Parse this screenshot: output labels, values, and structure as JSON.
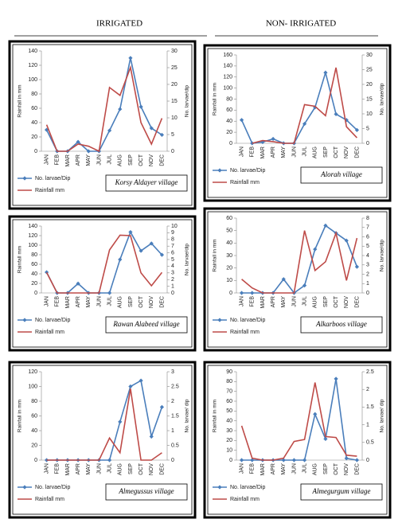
{
  "headers": [
    "IRRIGATED",
    "NON- IRRIGATED"
  ],
  "chart_data": [
    {
      "type": "line",
      "label": "Korsy Aldayer village",
      "y_label": "Rainfall in mm",
      "y2_label": "No. larvae/dip",
      "categories": [
        "JAN",
        "FEB",
        "MAR",
        "APR",
        "MAY",
        "JUN",
        "JUL",
        "AUG",
        "SEP",
        "OCT",
        "NOV",
        "DEC"
      ],
      "ylim": [
        0,
        140
      ],
      "yticks": [
        0,
        20,
        40,
        60,
        80,
        100,
        120,
        140
      ],
      "y2lim": [
        0,
        30
      ],
      "y2ticks": [
        0,
        5,
        10,
        15,
        20,
        25,
        30
      ],
      "series": [
        {
          "name": "No. larvae/Dip",
          "color": "#4a7ebb",
          "axis": "y2",
          "marker": "diamond",
          "values": [
            6.4,
            0,
            0,
            2.8,
            0,
            0,
            6.2,
            12.6,
            27.9,
            13.3,
            6.9,
            4.9
          ]
        },
        {
          "name": "Rainfall mm",
          "color": "#be4b48",
          "values": [
            37,
            0,
            0,
            10,
            7,
            0,
            89,
            78,
            117,
            40,
            10,
            46
          ]
        }
      ]
    },
    {
      "type": "line",
      "label": "Alorah village",
      "y_label": "Rainfall in mm",
      "y2_label": "No. larvae/dip",
      "categories": [
        "JAN",
        "FEB",
        "MAR",
        "APR",
        "MAY",
        "JUN",
        "JUL",
        "AUG",
        "SEP",
        "OCT",
        "NOV",
        "DEC"
      ],
      "ylim": [
        0,
        160
      ],
      "yticks": [
        0,
        20,
        40,
        60,
        80,
        100,
        120,
        140,
        160
      ],
      "y2lim": [
        0,
        30
      ],
      "y2ticks": [
        0,
        5,
        10,
        15,
        20,
        25,
        30
      ],
      "series": [
        {
          "name": "No. larvae/Dip",
          "color": "#4a7ebb",
          "axis": "y2",
          "marker": "diamond",
          "values": [
            7.9,
            0,
            0.4,
            1.5,
            0,
            0,
            6.6,
            12.2,
            24,
            9.9,
            7.9,
            4.5
          ]
        },
        {
          "name": "Rainfall mm",
          "color": "#be4b48",
          "values": [
            null,
            0,
            5,
            3,
            0,
            0,
            70,
            67,
            50,
            137,
            30,
            10
          ]
        }
      ]
    },
    {
      "type": "line",
      "label": "Rawan Alabeed village",
      "y_label": "Rainfall mm",
      "y2_label": "No. larvae/dip",
      "categories": [
        "JAN",
        "FEB",
        "MAR",
        "APR",
        "MAY",
        "JUN",
        "JUL",
        "AUG",
        "SEP",
        "OCT",
        "NOV",
        "DEC"
      ],
      "ylim": [
        0,
        140
      ],
      "yticks": [
        0,
        20,
        40,
        60,
        80,
        100,
        120,
        140
      ],
      "y2lim": [
        0,
        10
      ],
      "y2ticks": [
        0,
        1,
        2,
        3,
        4,
        5,
        6,
        7,
        8,
        9,
        10
      ],
      "series": [
        {
          "name": "No. larvae/Dip",
          "color": "#4a7ebb",
          "axis": "y2",
          "marker": "diamond",
          "values": [
            3.1,
            0,
            0,
            1.4,
            0,
            0,
            0,
            5,
            9.1,
            6.3,
            7.4,
            5.7
          ]
        },
        {
          "name": "Rainfall mm",
          "color": "#be4b48",
          "values": [
            43,
            0,
            0,
            0,
            0,
            0,
            90,
            121,
            120,
            42,
            15,
            43
          ]
        }
      ]
    },
    {
      "type": "line",
      "label": "Alkarboos village",
      "y_label": "Rainfall in mm",
      "y2_label": "No. larvae/dip",
      "categories": [
        "JAN",
        "FEB",
        "MAR",
        "APR",
        "MAY",
        "JUN",
        "JUL",
        "AUG",
        "SEP",
        "OCT",
        "NOV",
        "DEC"
      ],
      "ylim": [
        0,
        60
      ],
      "yticks": [
        0,
        10,
        20,
        30,
        40,
        50,
        60
      ],
      "y2lim": [
        0,
        8
      ],
      "y2ticks": [
        0,
        1,
        2,
        3,
        4,
        5,
        6,
        7,
        8
      ],
      "series": [
        {
          "name": "No. larvae/Dip",
          "color": "#4a7ebb",
          "axis": "y2",
          "marker": "diamond",
          "values": [
            0,
            0,
            0,
            0,
            1.47,
            0,
            0.8,
            4.67,
            7.2,
            6.4,
            5.6,
            2.8
          ]
        },
        {
          "name": "Rainfall mm",
          "color": "#be4b48",
          "values": [
            11,
            4,
            0,
            0,
            0,
            0,
            50,
            18,
            25,
            48,
            10,
            44
          ]
        }
      ]
    },
    {
      "type": "line",
      "label": "Almegussus village",
      "y_label": "Rainfall in mm",
      "y2_label": "No. larvae/ dip",
      "categories": [
        "JAN",
        "FEB",
        "MAR",
        "APR",
        "MAY",
        "JUN",
        "JUL",
        "AUG",
        "SEP",
        "OCT",
        "NOV",
        "DEC"
      ],
      "ylim": [
        0,
        120
      ],
      "yticks": [
        0,
        20,
        40,
        60,
        80,
        100,
        120
      ],
      "y2lim": [
        0,
        3
      ],
      "y2ticks": [
        0,
        0.5,
        1,
        1.5,
        2,
        2.5,
        3
      ],
      "series": [
        {
          "name": "No. larvae/Dip",
          "color": "#4a7ebb",
          "axis": "y2",
          "marker": "diamond",
          "values": [
            0,
            0,
            0,
            0,
            0,
            0,
            0,
            1.3,
            2.5,
            2.7,
            0.8,
            1.8
          ]
        },
        {
          "name": "Rainfall mm",
          "color": "#be4b48",
          "values": [
            0,
            0,
            0,
            0,
            0,
            0,
            30,
            10,
            97,
            0,
            0,
            10
          ]
        }
      ]
    },
    {
      "type": "line",
      "label": "Almegurgum village",
      "y_label": "Rainfall in mm",
      "y2_label": "No. larvae/ dip",
      "categories": [
        "JAN",
        "FEB",
        "MAR",
        "APR",
        "MAY",
        "JUN",
        "JUL",
        "AUG",
        "SEP",
        "OCT",
        "NOV",
        "DEC"
      ],
      "ylim": [
        0,
        90
      ],
      "yticks": [
        0,
        10,
        20,
        30,
        40,
        50,
        60,
        70,
        80,
        90
      ],
      "y2lim": [
        0,
        2.5
      ],
      "y2ticks": [
        0,
        0.5,
        1,
        1.5,
        2,
        2.5
      ],
      "series": [
        {
          "name": "No. larvae/Dip",
          "color": "#4a7ebb",
          "axis": "y2",
          "marker": "diamond",
          "values": [
            0,
            0,
            0,
            0,
            0,
            0,
            0,
            1.3,
            0.6,
            2.3,
            0.05,
            0
          ]
        },
        {
          "name": "Rainfall mm",
          "color": "#be4b48",
          "values": [
            35,
            2,
            0,
            0,
            2,
            19,
            21,
            79,
            24,
            23,
            5,
            4
          ]
        }
      ]
    }
  ]
}
